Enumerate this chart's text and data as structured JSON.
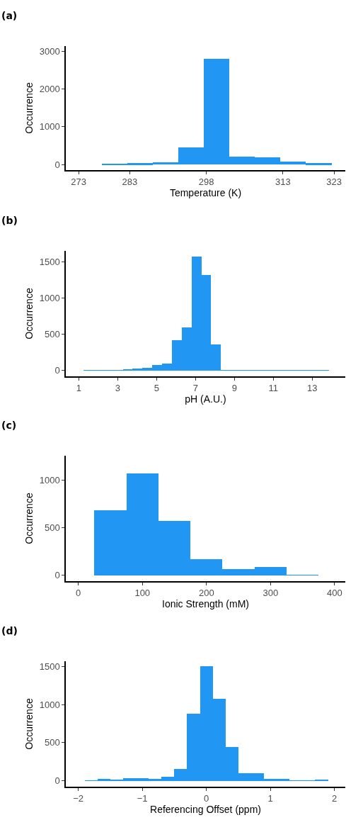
{
  "chart_data": [
    {
      "type": "histogram",
      "title": "(a)",
      "xlabel": "Temperature (K)",
      "ylabel": "Occurrence",
      "color": "#2196f3",
      "bins": [
        277.5,
        282.5,
        287.5,
        292.5,
        297.5,
        302.5,
        307.5,
        312.5,
        317.5,
        322.5
      ],
      "values": [
        10,
        30,
        50,
        460,
        2800,
        200,
        180,
        70,
        30
      ],
      "xlim": [
        270.5,
        325.2
      ],
      "xticks": [
        273,
        283,
        298,
        313,
        323
      ],
      "ylim": [
        -150,
        3140
      ],
      "yticks": [
        0,
        1000,
        2000,
        3000
      ]
    },
    {
      "type": "histogram",
      "title": "(b)",
      "xlabel": "pH (A.U.)",
      "ylabel": "Occurrence",
      "color": "#2196f3",
      "bins": [
        1.24,
        1.745,
        2.25,
        2.755,
        3.26,
        3.765,
        4.27,
        4.775,
        5.28,
        5.785,
        6.29,
        6.795,
        7.3,
        7.805,
        8.31,
        8.815,
        9.32,
        9.825,
        10.33,
        10.835,
        11.34,
        11.845,
        12.35,
        12.855,
        13.36,
        13.865
      ],
      "values": [
        5,
        5,
        5,
        5,
        15,
        25,
        40,
        75,
        90,
        415,
        590,
        1570,
        1315,
        360,
        5,
        5,
        5,
        5,
        5,
        5,
        5,
        5,
        5,
        5,
        5
      ],
      "xlim": [
        0.33,
        14.7
      ],
      "xticks": [
        1,
        3,
        5,
        7,
        9,
        11,
        13
      ],
      "ylim": [
        -82,
        1650
      ],
      "yticks": [
        0,
        500,
        1000,
        1500
      ]
    },
    {
      "type": "histogram",
      "title": "(c)",
      "xlabel": "Ionic Strength (mM)",
      "ylabel": "Occurrence",
      "color": "#2196f3",
      "bins": [
        25,
        75,
        125,
        175,
        225,
        275,
        325,
        375
      ],
      "values": [
        681,
        1075,
        574,
        170,
        65,
        87,
        5
      ],
      "xlim": [
        -19.5,
        416.6
      ],
      "xticks": [
        0,
        100,
        200,
        300,
        400
      ],
      "ylim": [
        -62,
        1259
      ],
      "yticks": [
        0,
        500,
        1000
      ]
    },
    {
      "type": "histogram",
      "title": "(d)",
      "xlabel": "Referencing Offset (ppm)",
      "ylabel": "Occurrence",
      "color": "#2196f3",
      "bins": [
        -1.9,
        -1.7,
        -1.5,
        -1.3,
        -1.1,
        -0.9,
        -0.7,
        -0.5,
        -0.3,
        -0.1,
        0.1,
        0.3,
        0.5,
        0.7,
        0.9,
        1.1,
        1.3,
        1.5,
        1.7,
        1.9
      ],
      "values": [
        5,
        20,
        10,
        35,
        35,
        20,
        55,
        150,
        880,
        1500,
        1075,
        440,
        95,
        95,
        25,
        25,
        5,
        5,
        10
      ],
      "xlim": [
        -2.195,
        2.17
      ],
      "xticks": [
        {
          "value": -2,
          "label": "−2"
        },
        {
          "value": -1,
          "label": "−1"
        },
        0,
        1,
        2
      ],
      "ylim": [
        -78,
        1568
      ],
      "yticks": [
        0,
        500,
        1000,
        1500
      ]
    }
  ]
}
